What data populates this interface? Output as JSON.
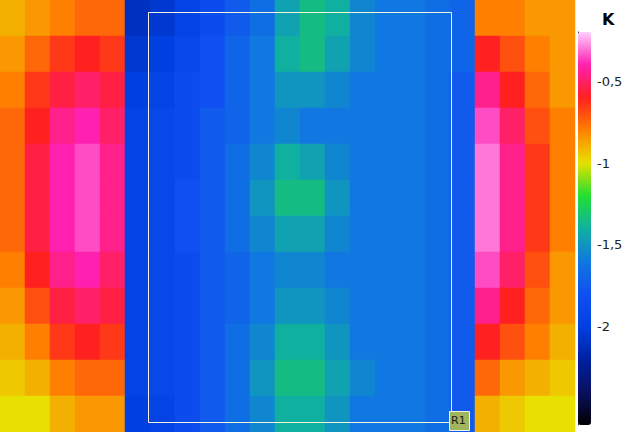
{
  "chart_data": {
    "type": "heatmap",
    "tick_labels": false,
    "annotations": [
      "R1"
    ],
    "colorbar": {
      "label": "K",
      "range": [
        -2.6,
        -0.2
      ],
      "ticks": [
        {
          "value": -0.5,
          "label": "-0,5"
        },
        -1,
        {
          "value": -1.5,
          "label": "-1,5"
        },
        -2
      ]
    },
    "cells": [
      [
        -0.9,
        -0.85,
        -0.8,
        -0.75,
        -0.75,
        -2.1,
        -2.05,
        -1.95,
        -1.85,
        -1.75,
        -1.65,
        -1.45,
        -1.35,
        -1.4,
        -1.55,
        -1.6,
        -1.6,
        -1.65,
        -1.7,
        -0.8,
        -0.8,
        -0.85,
        -0.85
      ],
      [
        -0.85,
        -0.75,
        -0.65,
        -0.6,
        -0.65,
        -2.05,
        -2.0,
        -1.9,
        -1.8,
        -1.7,
        -1.6,
        -1.4,
        -1.35,
        -1.45,
        -1.55,
        -1.6,
        -1.6,
        -1.65,
        -1.7,
        -0.6,
        -0.7,
        -0.8,
        -0.85
      ],
      [
        -0.8,
        -0.65,
        -0.55,
        -0.5,
        -0.55,
        -2.0,
        -1.95,
        -1.85,
        -1.8,
        -1.7,
        -1.6,
        -1.5,
        -1.5,
        -1.55,
        -1.6,
        -1.6,
        -1.6,
        -1.65,
        -1.75,
        -0.45,
        -0.6,
        -0.75,
        -0.85
      ],
      [
        -0.75,
        -0.6,
        -0.45,
        -0.4,
        -0.5,
        -1.95,
        -1.9,
        -1.85,
        -1.75,
        -1.7,
        -1.6,
        -1.55,
        -1.6,
        -1.6,
        -1.6,
        -1.6,
        -1.6,
        -1.65,
        -1.75,
        -0.35,
        -0.5,
        -0.7,
        -0.8
      ],
      [
        -0.75,
        -0.55,
        -0.4,
        -0.35,
        -0.45,
        -1.95,
        -1.9,
        -1.85,
        -1.75,
        -1.65,
        -1.55,
        -1.4,
        -1.45,
        -1.55,
        -1.6,
        -1.6,
        -1.6,
        -1.65,
        -1.75,
        -0.3,
        -0.45,
        -0.65,
        -0.8
      ],
      [
        -0.75,
        -0.55,
        -0.4,
        -0.35,
        -0.45,
        -1.95,
        -1.9,
        -1.8,
        -1.75,
        -1.65,
        -1.5,
        -1.35,
        -1.35,
        -1.5,
        -1.6,
        -1.6,
        -1.6,
        -1.65,
        -1.75,
        -0.3,
        -0.45,
        -0.65,
        -0.8
      ],
      [
        -0.75,
        -0.55,
        -0.4,
        -0.35,
        -0.45,
        -1.95,
        -1.9,
        -1.8,
        -1.75,
        -1.65,
        -1.55,
        -1.45,
        -1.45,
        -1.55,
        -1.6,
        -1.6,
        -1.6,
        -1.65,
        -1.75,
        -0.3,
        -0.45,
        -0.65,
        -0.8
      ],
      [
        -0.8,
        -0.6,
        -0.45,
        -0.4,
        -0.5,
        -1.95,
        -1.9,
        -1.85,
        -1.75,
        -1.7,
        -1.6,
        -1.55,
        -1.55,
        -1.6,
        -1.6,
        -1.6,
        -1.6,
        -1.65,
        -1.75,
        -0.35,
        -0.5,
        -0.7,
        -0.85
      ],
      [
        -0.85,
        -0.7,
        -0.55,
        -0.5,
        -0.55,
        -1.95,
        -1.9,
        -1.85,
        -1.75,
        -1.7,
        -1.6,
        -1.5,
        -1.5,
        -1.55,
        -1.6,
        -1.6,
        -1.6,
        -1.65,
        -1.75,
        -0.45,
        -0.6,
        -0.75,
        -0.85
      ],
      [
        -0.9,
        -0.8,
        -0.65,
        -0.6,
        -0.65,
        -1.95,
        -1.9,
        -1.85,
        -1.75,
        -1.65,
        -1.55,
        -1.4,
        -1.4,
        -1.5,
        -1.6,
        -1.6,
        -1.6,
        -1.65,
        -1.75,
        -0.6,
        -0.7,
        -0.8,
        -0.9
      ],
      [
        -0.95,
        -0.9,
        -0.8,
        -0.75,
        -0.75,
        -1.95,
        -1.9,
        -1.85,
        -1.75,
        -1.65,
        -1.5,
        -1.35,
        -1.35,
        -1.45,
        -1.55,
        -1.6,
        -1.6,
        -1.65,
        -1.75,
        -0.75,
        -0.85,
        -0.9,
        -0.95
      ],
      [
        -1.0,
        -1.0,
        -0.9,
        -0.85,
        -0.85,
        -2.0,
        -1.95,
        -1.85,
        -1.75,
        -1.65,
        -1.55,
        -1.4,
        -1.4,
        -1.5,
        -1.6,
        -1.6,
        -1.6,
        -1.65,
        -1.75,
        -0.9,
        -0.95,
        -1.0,
        -1.0
      ]
    ]
  }
}
